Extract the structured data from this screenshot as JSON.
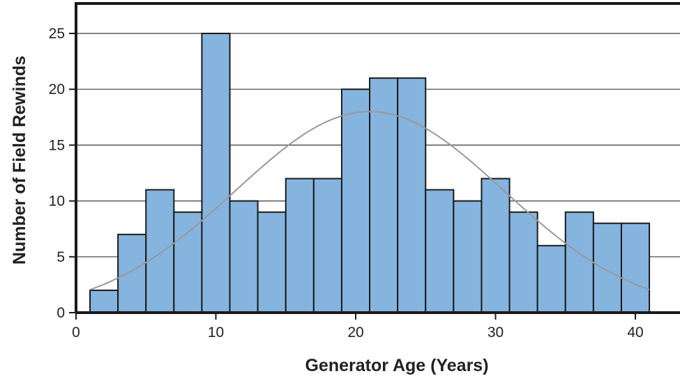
{
  "chart_data": {
    "type": "bar",
    "title": "",
    "xlabel": "Generator Age (Years)",
    "ylabel": "Number of Field Rewinds",
    "xlim": [
      0,
      43
    ],
    "ylim": [
      0,
      26
    ],
    "x_ticks": [
      0,
      10,
      20,
      30,
      40
    ],
    "y_ticks": [
      0,
      5,
      10,
      15,
      20,
      25
    ],
    "grid": "horizontal",
    "bar_color": "#85b4df",
    "bar_edge_color": "#1a1a1a",
    "curve_color": "#999999",
    "bins": [
      {
        "start": 1,
        "end": 3,
        "value": 2
      },
      {
        "start": 3,
        "end": 5,
        "value": 7
      },
      {
        "start": 5,
        "end": 7,
        "value": 11
      },
      {
        "start": 7,
        "end": 9,
        "value": 9
      },
      {
        "start": 9,
        "end": 11,
        "value": 25
      },
      {
        "start": 11,
        "end": 13,
        "value": 10
      },
      {
        "start": 13,
        "end": 15,
        "value": 9
      },
      {
        "start": 15,
        "end": 17,
        "value": 12
      },
      {
        "start": 17,
        "end": 19,
        "value": 12
      },
      {
        "start": 19,
        "end": 21,
        "value": 20
      },
      {
        "start": 21,
        "end": 23,
        "value": 21
      },
      {
        "start": 23,
        "end": 25,
        "value": 21
      },
      {
        "start": 25,
        "end": 27,
        "value": 11
      },
      {
        "start": 27,
        "end": 29,
        "value": 10
      },
      {
        "start": 29,
        "end": 31,
        "value": 12
      },
      {
        "start": 31,
        "end": 33,
        "value": 9
      },
      {
        "start": 33,
        "end": 35,
        "value": 6
      },
      {
        "start": 35,
        "end": 37,
        "value": 9
      },
      {
        "start": 37,
        "end": 39,
        "value": 8
      },
      {
        "start": 39,
        "end": 41,
        "value": 8
      }
    ],
    "fitted_curve": {
      "type": "normal",
      "peak": 18,
      "mean": 21,
      "sd": 9.6,
      "x_range": [
        1,
        41
      ]
    }
  }
}
